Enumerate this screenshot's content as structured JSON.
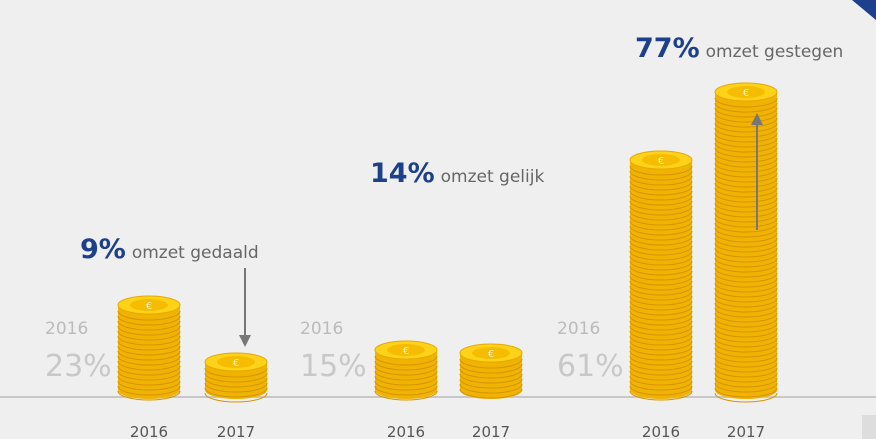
{
  "groups": [
    {
      "headline_value": "9%",
      "headline_text": "omzet gedaald",
      "prior_year": "2016",
      "prior_value": "23%",
      "years": [
        "2016",
        "2017"
      ]
    },
    {
      "headline_value": "14%",
      "headline_text": "omzet gelijk",
      "prior_year": "2016",
      "prior_value": "15%",
      "years": [
        "2016",
        "2017"
      ]
    },
    {
      "headline_value": "77%",
      "headline_text": "omzet gestegen",
      "prior_year": "2016",
      "prior_value": "61%",
      "years": [
        "2016",
        "2017"
      ]
    }
  ]
}
